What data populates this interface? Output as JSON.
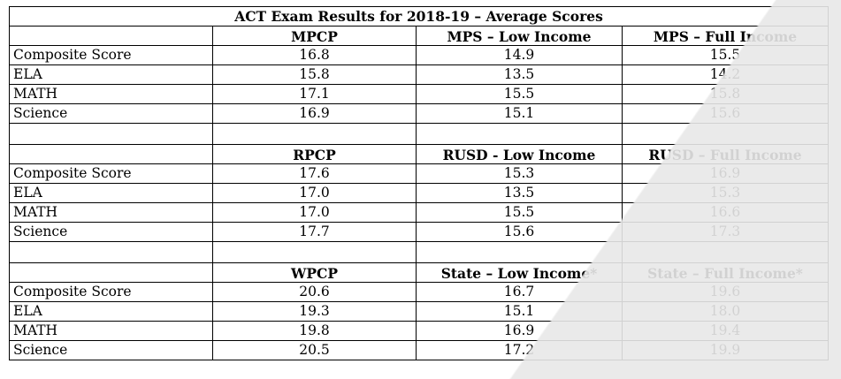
{
  "title": "ACT Exam Results for 2018-19 – Average Scores",
  "sections": [
    {
      "headers": [
        "MPCP",
        "MPS – Low Income",
        "MPS – Full Income"
      ],
      "rows": [
        {
          "label": "Composite Score",
          "values": [
            "16.8",
            "14.9",
            "15.5"
          ]
        },
        {
          "label": "ELA",
          "values": [
            "15.8",
            "13.5",
            "14.2"
          ]
        },
        {
          "label": "MATH",
          "values": [
            "17.1",
            "15.5",
            "15.8"
          ]
        },
        {
          "label": "Science",
          "values": [
            "16.9",
            "15.1",
            "15.6"
          ]
        }
      ]
    },
    {
      "headers": [
        "RPCP",
        "RUSD - Low Income",
        "RUSD – Full Income"
      ],
      "rows": [
        {
          "label": "Composite Score",
          "values": [
            "17.6",
            "15.3",
            "16.9"
          ]
        },
        {
          "label": "ELA",
          "values": [
            "17.0",
            "13.5",
            "15.3"
          ]
        },
        {
          "label": "MATH",
          "values": [
            "17.0",
            "15.5",
            "16.6"
          ]
        },
        {
          "label": "Science",
          "values": [
            "17.7",
            "15.6",
            "17.3"
          ]
        }
      ]
    },
    {
      "headers": [
        "WPCP",
        "State – Low Income*",
        "State – Full Income*"
      ],
      "rows": [
        {
          "label": "Composite Score",
          "values": [
            "20.6",
            "16.7",
            "19.6"
          ]
        },
        {
          "label": "ELA",
          "values": [
            "19.3",
            "15.1",
            "18.0"
          ]
        },
        {
          "label": "MATH",
          "values": [
            "19.8",
            "16.9",
            "19.4"
          ]
        },
        {
          "label": "Science",
          "values": [
            "20.5",
            "17.2",
            "19.9"
          ]
        }
      ]
    }
  ]
}
